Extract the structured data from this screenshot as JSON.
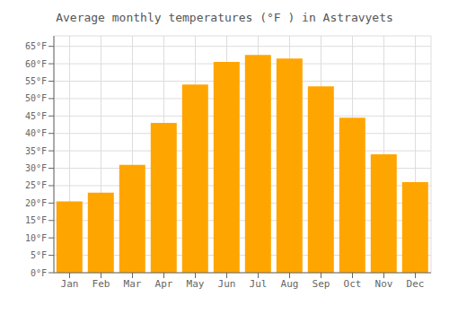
{
  "chart_data": {
    "type": "bar",
    "title": "Average monthly temperatures (°F ) in Astravyets",
    "categories": [
      "Jan",
      "Feb",
      "Mar",
      "Apr",
      "May",
      "Jun",
      "Jul",
      "Aug",
      "Sep",
      "Oct",
      "Nov",
      "Dec"
    ],
    "values": [
      20.5,
      23.0,
      31.0,
      43.0,
      54.0,
      60.5,
      62.5,
      61.5,
      53.5,
      44.5,
      34.0,
      26.0
    ],
    "color": "#FFA500",
    "ylim": [
      0,
      68
    ],
    "yticks": [
      {
        "value": 0,
        "label": "0°F"
      },
      {
        "value": 5,
        "label": "5°F"
      },
      {
        "value": 10,
        "label": "10°F"
      },
      {
        "value": 15,
        "label": "15°F"
      },
      {
        "value": 20,
        "label": "20°F"
      },
      {
        "value": 25,
        "label": "25°F"
      },
      {
        "value": 30,
        "label": "30°F"
      },
      {
        "value": 35,
        "label": "35°F"
      },
      {
        "value": 40,
        "label": "40°F"
      },
      {
        "value": 45,
        "label": "45°F"
      },
      {
        "value": 50,
        "label": "50°F"
      },
      {
        "value": 55,
        "label": "55°F"
      },
      {
        "value": 60,
        "label": "60°F"
      },
      {
        "value": 65,
        "label": "65°F"
      }
    ],
    "grid": true
  }
}
